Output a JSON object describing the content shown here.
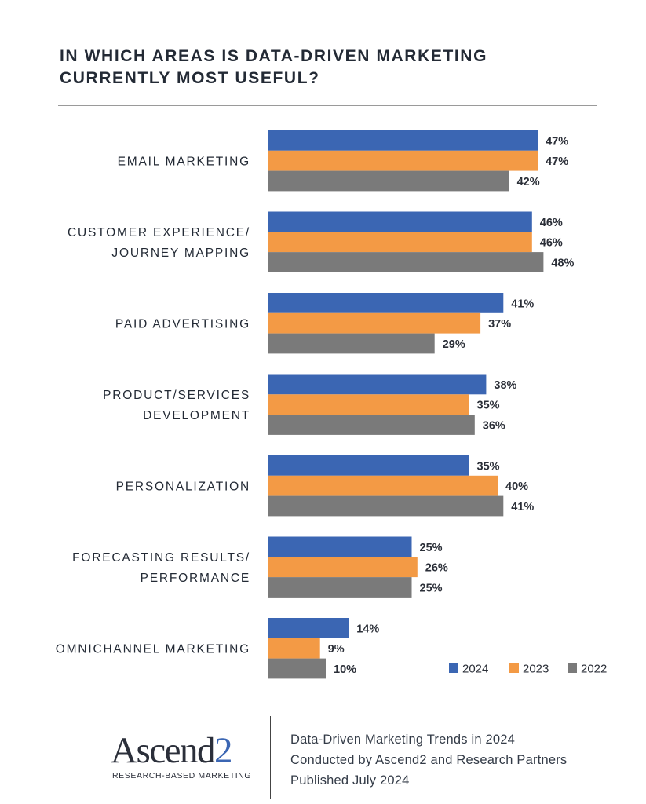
{
  "title_lines": [
    "IN WHICH AREAS IS DATA-DRIVEN MARKETING",
    "CURRENTLY MOST USEFUL?"
  ],
  "colors": {
    "2024": "#3b66b3",
    "2023": "#f39a45",
    "2022": "#7a7a7a"
  },
  "chart_data": {
    "type": "bar",
    "orientation": "horizontal",
    "categories": [
      [
        "EMAIL MARKETING"
      ],
      [
        "CUSTOMER EXPERIENCE/",
        "JOURNEY MAPPING"
      ],
      [
        "PAID ADVERTISING"
      ],
      [
        "PRODUCT/SERVICES",
        "DEVELOPMENT"
      ],
      [
        "PERSONALIZATION"
      ],
      [
        "FORECASTING RESULTS/",
        "PERFORMANCE"
      ],
      [
        "OMNICHANNEL MARKETING"
      ]
    ],
    "series": [
      {
        "name": "2024",
        "values": [
          47,
          46,
          41,
          38,
          35,
          25,
          14
        ],
        "labels": [
          "47%",
          "46%",
          "41%",
          "38%",
          "35%",
          "25%",
          "14%"
        ]
      },
      {
        "name": "2023",
        "values": [
          47,
          46,
          37,
          35,
          40,
          26,
          9
        ],
        "labels": [
          "47%",
          "46%",
          "37%",
          "35%",
          "40%",
          "26%",
          "9%"
        ]
      },
      {
        "name": "2022",
        "values": [
          42,
          48,
          29,
          36,
          41,
          25,
          10
        ],
        "labels": [
          "42%",
          "48%",
          "29%",
          "36%",
          "41%",
          "25%",
          "10%"
        ]
      }
    ],
    "value_unit": "%",
    "legend_position": "bottom-right"
  },
  "footer": {
    "logo_word": "Ascend",
    "logo_digit": "2",
    "logo_tagline": "RESEARCH-BASED MARKETING",
    "lines": [
      "Data-Driven Marketing Trends in 2024",
      "Conducted by Ascend2 and Research Partners",
      "Published July 2024"
    ]
  }
}
